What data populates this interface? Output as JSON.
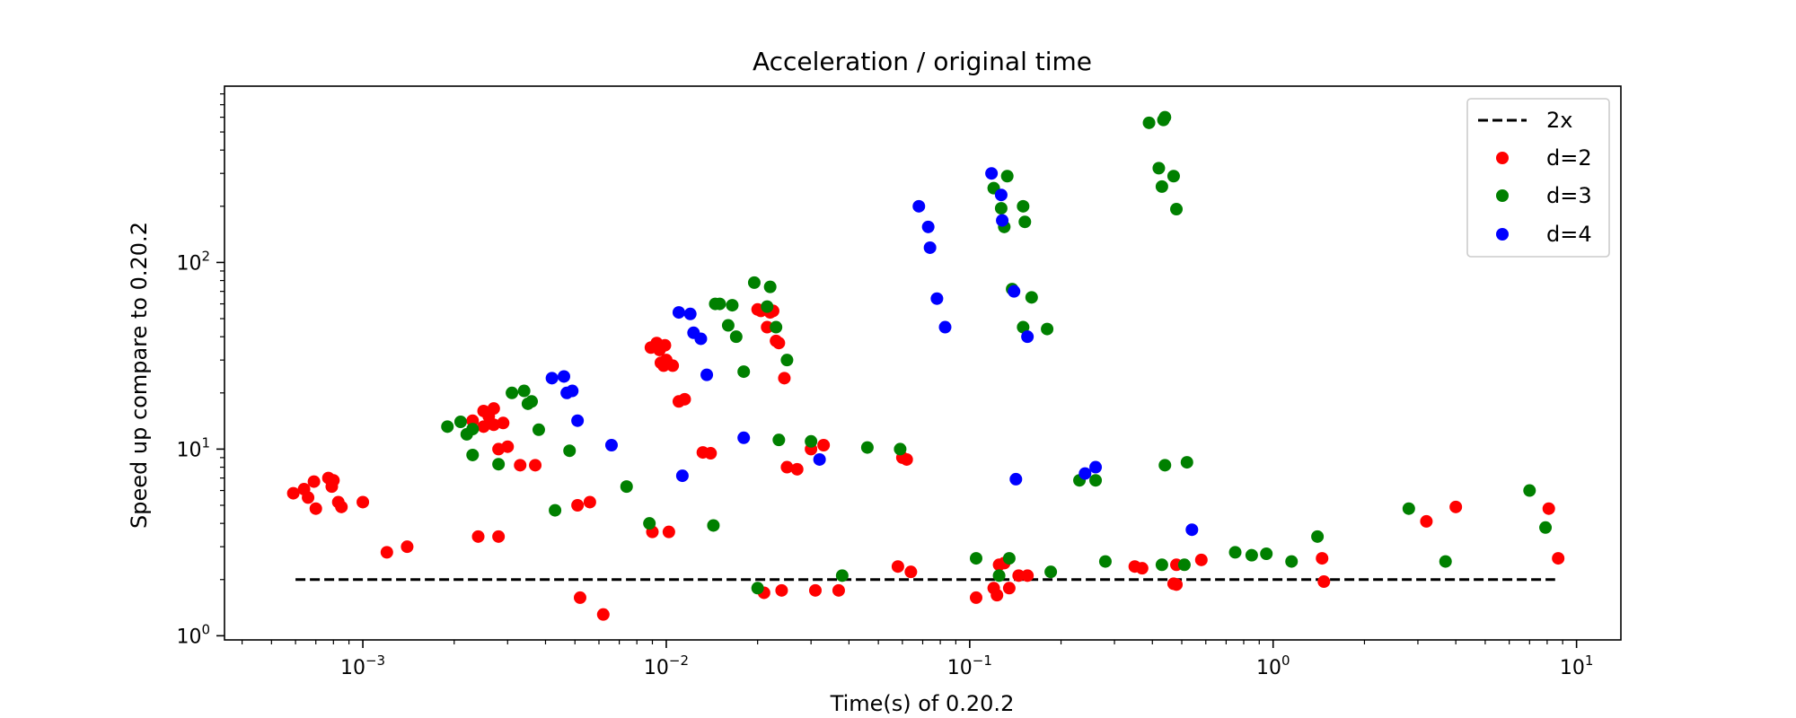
{
  "chart_data": {
    "type": "scatter",
    "title": "Acceleration / original time",
    "xlabel": "Time(s) of 0.20.2",
    "ylabel": "Speed up compare to 0.20.2",
    "xscale": "log",
    "yscale": "log",
    "xlim": [
      0.00035,
      14
    ],
    "ylim": [
      0.95,
      880
    ],
    "grid": false,
    "legend_position": "top-right",
    "x_ticks": [
      {
        "value": 0.001,
        "mant": "10",
        "exp": "−3"
      },
      {
        "value": 0.01,
        "mant": "10",
        "exp": "−2"
      },
      {
        "value": 0.1,
        "mant": "10",
        "exp": "−1"
      },
      {
        "value": 1,
        "mant": "10",
        "exp": "0"
      },
      {
        "value": 10,
        "mant": "10",
        "exp": "1"
      }
    ],
    "y_ticks": [
      {
        "value": 1,
        "mant": "10",
        "exp": "0"
      },
      {
        "value": 10,
        "mant": "10",
        "exp": "1"
      },
      {
        "value": 100,
        "mant": "10",
        "exp": "2"
      }
    ],
    "reference_line": {
      "name": "2x",
      "y": 2,
      "x_range": [
        0.0006,
        8.5
      ],
      "color": "#000000",
      "style": "dashed"
    },
    "series": [
      {
        "name": "d=2",
        "color": "#ff0000",
        "points": [
          [
            0.00059,
            5.8
          ],
          [
            0.00064,
            6.1
          ],
          [
            0.00066,
            5.5
          ],
          [
            0.00069,
            6.7
          ],
          [
            0.0007,
            4.8
          ],
          [
            0.00077,
            7.0
          ],
          [
            0.00079,
            6.3
          ],
          [
            0.0008,
            6.8
          ],
          [
            0.00083,
            5.2
          ],
          [
            0.00085,
            4.9
          ],
          [
            0.001,
            5.2
          ],
          [
            0.0012,
            2.8
          ],
          [
            0.0014,
            3.0
          ],
          [
            0.0023,
            14.2
          ],
          [
            0.0024,
            3.4
          ],
          [
            0.0025,
            16.0
          ],
          [
            0.0025,
            13.2
          ],
          [
            0.0026,
            15.0
          ],
          [
            0.0027,
            13.5
          ],
          [
            0.0027,
            16.5
          ],
          [
            0.0028,
            10.0
          ],
          [
            0.0028,
            3.4
          ],
          [
            0.0029,
            13.8
          ],
          [
            0.003,
            10.3
          ],
          [
            0.0033,
            8.2
          ],
          [
            0.0037,
            8.2
          ],
          [
            0.0051,
            5.0
          ],
          [
            0.0052,
            1.6
          ],
          [
            0.0056,
            5.2
          ],
          [
            0.0062,
            1.3
          ],
          [
            0.0089,
            35
          ],
          [
            0.009,
            3.6
          ],
          [
            0.0093,
            37
          ],
          [
            0.0095,
            34
          ],
          [
            0.0096,
            29
          ],
          [
            0.0098,
            28
          ],
          [
            0.0099,
            36
          ],
          [
            0.01,
            30
          ],
          [
            0.0102,
            3.6
          ],
          [
            0.0105,
            28
          ],
          [
            0.011,
            18
          ],
          [
            0.0115,
            18.5
          ],
          [
            0.0132,
            9.6
          ],
          [
            0.014,
            9.5
          ],
          [
            0.02,
            56
          ],
          [
            0.0205,
            55
          ],
          [
            0.021,
            1.7
          ],
          [
            0.0215,
            45
          ],
          [
            0.022,
            54
          ],
          [
            0.0225,
            55
          ],
          [
            0.023,
            38
          ],
          [
            0.0235,
            37
          ],
          [
            0.024,
            1.75
          ],
          [
            0.0245,
            24
          ],
          [
            0.025,
            8.0
          ],
          [
            0.027,
            7.8
          ],
          [
            0.03,
            10.0
          ],
          [
            0.031,
            1.75
          ],
          [
            0.033,
            10.5
          ],
          [
            0.037,
            1.75
          ],
          [
            0.058,
            2.35
          ],
          [
            0.06,
            9.0
          ],
          [
            0.062,
            8.8
          ],
          [
            0.064,
            2.2
          ],
          [
            0.105,
            1.6
          ],
          [
            0.12,
            1.8
          ],
          [
            0.123,
            1.65
          ],
          [
            0.125,
            2.4
          ],
          [
            0.13,
            2.45
          ],
          [
            0.135,
            1.8
          ],
          [
            0.145,
            2.1
          ],
          [
            0.155,
            2.1
          ],
          [
            0.35,
            2.35
          ],
          [
            0.37,
            2.3
          ],
          [
            0.48,
            2.4
          ],
          [
            0.47,
            1.9
          ],
          [
            0.48,
            1.88
          ],
          [
            0.58,
            2.55
          ],
          [
            1.45,
            2.6
          ],
          [
            1.47,
            1.95
          ],
          [
            3.2,
            4.1
          ],
          [
            4.0,
            4.9
          ],
          [
            8.1,
            4.8
          ],
          [
            8.7,
            2.6
          ]
        ]
      },
      {
        "name": "d=3",
        "color": "#008000",
        "points": [
          [
            0.0019,
            13.2
          ],
          [
            0.0021,
            14.0
          ],
          [
            0.0022,
            12.0
          ],
          [
            0.0023,
            12.8
          ],
          [
            0.0023,
            9.3
          ],
          [
            0.0028,
            8.3
          ],
          [
            0.0031,
            20.0
          ],
          [
            0.0034,
            20.5
          ],
          [
            0.0035,
            17.5
          ],
          [
            0.0036,
            18.0
          ],
          [
            0.0038,
            12.7
          ],
          [
            0.0043,
            4.7
          ],
          [
            0.0048,
            9.8
          ],
          [
            0.0074,
            6.3
          ],
          [
            0.0088,
            4.0
          ],
          [
            0.0143,
            3.9
          ],
          [
            0.0145,
            60
          ],
          [
            0.015,
            60
          ],
          [
            0.016,
            46
          ],
          [
            0.0165,
            59
          ],
          [
            0.017,
            40
          ],
          [
            0.018,
            26
          ],
          [
            0.0195,
            78
          ],
          [
            0.02,
            1.8
          ],
          [
            0.0215,
            58
          ],
          [
            0.022,
            74
          ],
          [
            0.023,
            45
          ],
          [
            0.0235,
            11.2
          ],
          [
            0.025,
            30
          ],
          [
            0.03,
            11.0
          ],
          [
            0.038,
            2.1
          ],
          [
            0.046,
            10.2
          ],
          [
            0.059,
            10.0
          ],
          [
            0.105,
            2.6
          ],
          [
            0.12,
            250
          ],
          [
            0.125,
            2.1
          ],
          [
            0.127,
            195
          ],
          [
            0.13,
            155
          ],
          [
            0.133,
            290
          ],
          [
            0.135,
            2.6
          ],
          [
            0.138,
            72
          ],
          [
            0.15,
            200
          ],
          [
            0.152,
            165
          ],
          [
            0.15,
            45
          ],
          [
            0.16,
            65
          ],
          [
            0.18,
            44
          ],
          [
            0.185,
            2.2
          ],
          [
            0.23,
            6.8
          ],
          [
            0.26,
            6.8
          ],
          [
            0.28,
            2.5
          ],
          [
            0.39,
            560
          ],
          [
            0.42,
            320
          ],
          [
            0.43,
            255
          ],
          [
            0.435,
            580
          ],
          [
            0.44,
            600
          ],
          [
            0.44,
            8.2
          ],
          [
            0.43,
            2.4
          ],
          [
            0.47,
            290
          ],
          [
            0.48,
            193
          ],
          [
            0.51,
            2.4
          ],
          [
            0.52,
            8.5
          ],
          [
            0.75,
            2.8
          ],
          [
            0.85,
            2.7
          ],
          [
            0.95,
            2.75
          ],
          [
            1.15,
            2.5
          ],
          [
            1.4,
            3.4
          ],
          [
            2.8,
            4.8
          ],
          [
            3.7,
            2.5
          ],
          [
            7.0,
            6.0
          ],
          [
            7.9,
            3.8
          ]
        ]
      },
      {
        "name": "d=4",
        "color": "#0000ff",
        "points": [
          [
            0.0042,
            24
          ],
          [
            0.0046,
            24.5
          ],
          [
            0.0047,
            20
          ],
          [
            0.0049,
            20.5
          ],
          [
            0.0051,
            14.2
          ],
          [
            0.0066,
            10.5
          ],
          [
            0.011,
            54
          ],
          [
            0.012,
            53
          ],
          [
            0.0113,
            7.2
          ],
          [
            0.0123,
            42
          ],
          [
            0.013,
            39
          ],
          [
            0.0136,
            25
          ],
          [
            0.018,
            11.5
          ],
          [
            0.032,
            8.8
          ],
          [
            0.068,
            200
          ],
          [
            0.073,
            155
          ],
          [
            0.074,
            120
          ],
          [
            0.078,
            64
          ],
          [
            0.083,
            45
          ],
          [
            0.118,
            300
          ],
          [
            0.127,
            230
          ],
          [
            0.128,
            168
          ],
          [
            0.14,
            70
          ],
          [
            0.142,
            6.9
          ],
          [
            0.155,
            40
          ],
          [
            0.24,
            7.4
          ],
          [
            0.26,
            8.0
          ],
          [
            0.54,
            3.7
          ]
        ]
      }
    ]
  }
}
